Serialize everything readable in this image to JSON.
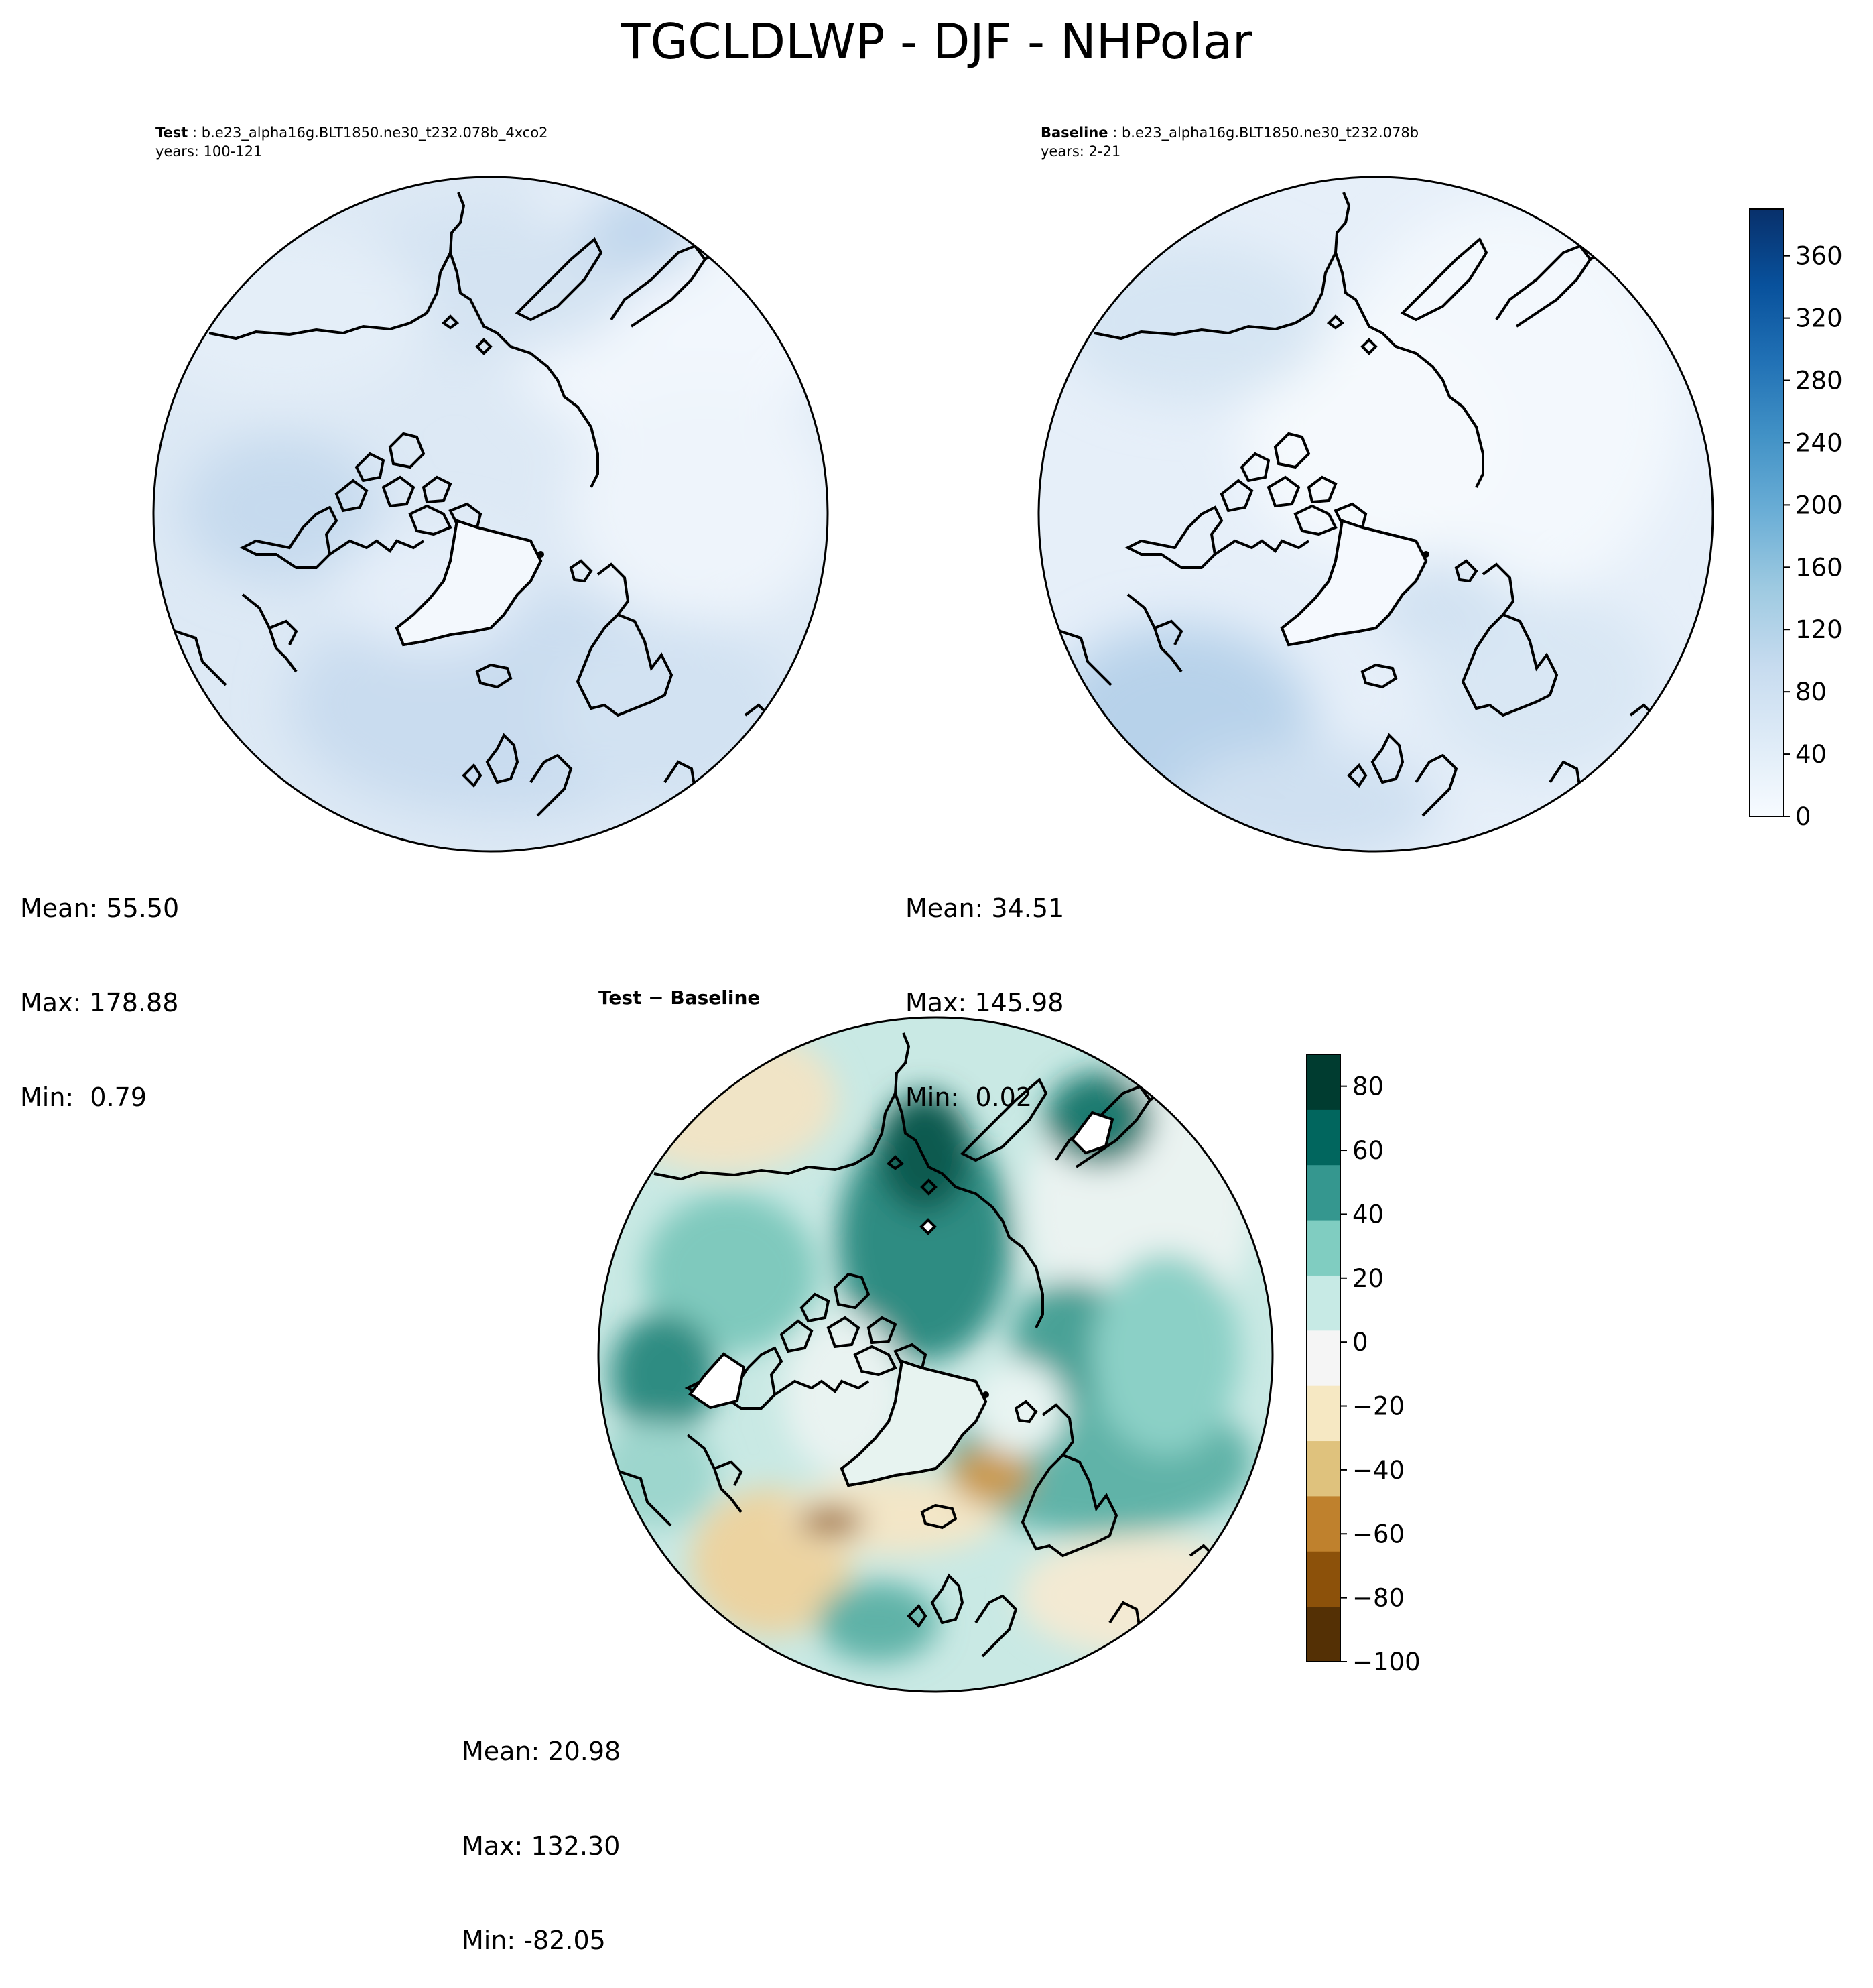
{
  "figure": {
    "title": "TGCLDLWP - DJF - NHPolar"
  },
  "panels": {
    "test": {
      "label": "Test",
      "case": "b.e23_alpha16g.BLT1850.ne30_t232.078b_4xco2",
      "years": "years: 100-121",
      "stats": {
        "mean": "Mean: 55.50",
        "max": "Max: 178.88",
        "min": "Min:  0.79"
      }
    },
    "baseline": {
      "label": "Baseline",
      "case": "b.e23_alpha16g.BLT1850.ne30_t232.078b",
      "years": "years: 2-21",
      "stats": {
        "mean": "Mean: 34.51",
        "max": "Max: 145.98",
        "min": "Min:  0.02"
      }
    },
    "diff": {
      "label": "Test − Baseline",
      "stats": {
        "mean": "Mean: 20.98",
        "max": "Max: 132.30",
        "min": "Min: -82.05"
      }
    }
  },
  "colorbars": {
    "absolute": {
      "colormap": "Blues",
      "range": [
        0,
        390
      ],
      "ticks": [
        0,
        40,
        80,
        120,
        160,
        200,
        240,
        280,
        320,
        360
      ],
      "colors": [
        "#f7fbff",
        "#deebf7",
        "#c6dbef",
        "#9ecae1",
        "#6baed6",
        "#4292c6",
        "#2171b5",
        "#08519c",
        "#08306b"
      ]
    },
    "difference": {
      "colormap": "BrBG",
      "range": [
        -100,
        90
      ],
      "ticks": [
        -100,
        -80,
        -60,
        -40,
        -20,
        0,
        20,
        40,
        60,
        80
      ],
      "tick_labels": [
        "−100",
        "−80",
        "−60",
        "−40",
        "−20",
        "0",
        "20",
        "40",
        "60",
        "80"
      ],
      "colors": [
        "#543005",
        "#8c510a",
        "#bf812d",
        "#dfc27d",
        "#f6e8c3",
        "#f5f5f5",
        "#c7eae5",
        "#80cdc1",
        "#35978f",
        "#01665e",
        "#003c30"
      ]
    }
  }
}
